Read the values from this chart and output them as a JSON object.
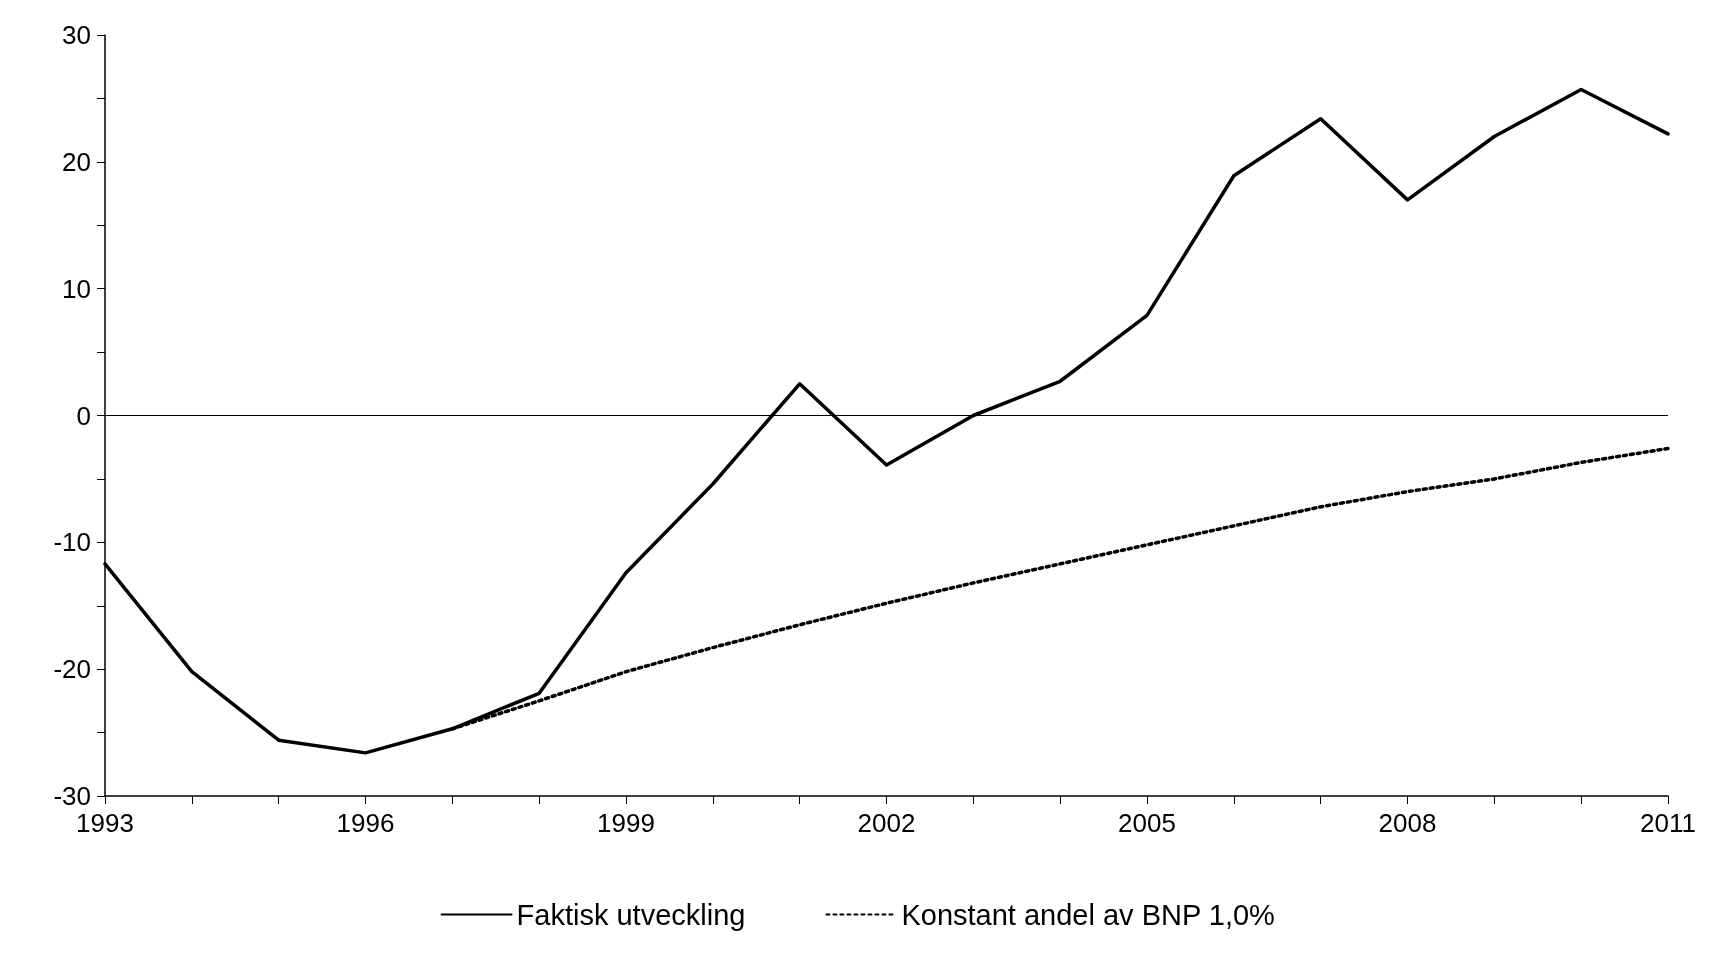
{
  "chart_data": {
    "type": "line",
    "x": [
      1993,
      1994,
      1995,
      1996,
      1997,
      1998,
      1999,
      2000,
      2001,
      2002,
      2003,
      2004,
      2005,
      2006,
      2007,
      2008,
      2009,
      2010,
      2011
    ],
    "series": [
      {
        "name": "Faktisk utveckling",
        "color": "#000000",
        "line_style": "solid",
        "values": [
          -11.7,
          -20.2,
          -25.6,
          -26.6,
          -24.7,
          -21.9,
          -12.4,
          -5.4,
          2.5,
          -3.9,
          0,
          2.7,
          7.9,
          18.9,
          23.4,
          17.0,
          22.0,
          25.7,
          22.2
        ]
      },
      {
        "name": "Konstant andel av BNP 1,0%",
        "color": "#000000",
        "line_style": "dotted",
        "values": [
          null,
          null,
          null,
          null,
          -24.7,
          -22.5,
          -20.2,
          -18.3,
          -16.5,
          -14.8,
          -13.2,
          -11.7,
          -10.2,
          -8.7,
          -7.2,
          -6.0,
          -5.0,
          -3.7,
          -2.6
        ]
      }
    ],
    "xlim": [
      1993,
      2011
    ],
    "xticks": [
      1993,
      {
        "value": 1994,
        "label": null
      },
      {
        "value": 1995,
        "label": null
      },
      1996,
      {
        "value": 1997,
        "label": null
      },
      {
        "value": 1998,
        "label": null
      },
      1999,
      {
        "value": 2000,
        "label": null
      },
      {
        "value": 2001,
        "label": null
      },
      2002,
      {
        "value": 2003,
        "label": null
      },
      {
        "value": 2004,
        "label": null
      },
      2005,
      {
        "value": 2006,
        "label": null
      },
      {
        "value": 2007,
        "label": null
      },
      2008,
      {
        "value": 2009,
        "label": null
      },
      {
        "value": 2010,
        "label": null
      },
      2011
    ],
    "ylim": [
      -30,
      30
    ],
    "yticks": [
      -30,
      {
        "value": -25,
        "label": null
      },
      -20,
      {
        "value": -15,
        "label": null
      },
      -10,
      {
        "value": -5,
        "label": null
      },
      0,
      {
        "value": 5,
        "label": null
      },
      10,
      {
        "value": 15,
        "label": null
      },
      20,
      {
        "value": 25,
        "label": null
      },
      30
    ],
    "ref_lines": [
      {
        "axis": "y",
        "value": 0,
        "color": "#000000"
      }
    ],
    "grid": false,
    "legend": "bottom",
    "marker": "none"
  }
}
